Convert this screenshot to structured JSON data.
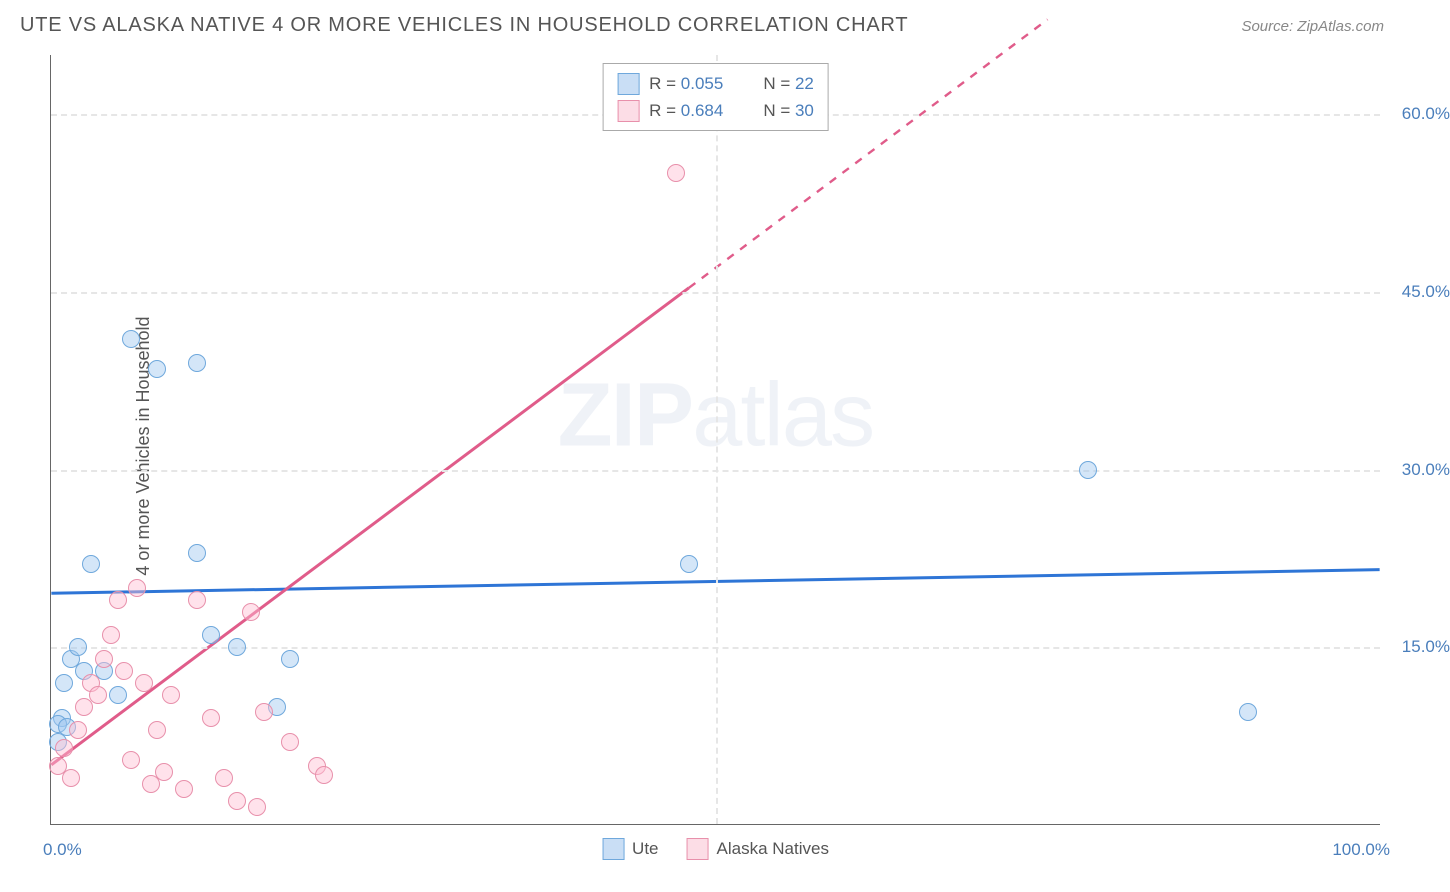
{
  "title": "UTE VS ALASKA NATIVE 4 OR MORE VEHICLES IN HOUSEHOLD CORRELATION CHART",
  "source": "Source: ZipAtlas.com",
  "watermark_a": "ZIP",
  "watermark_b": "atlas",
  "chart": {
    "type": "scatter",
    "ylabel": "4 or more Vehicles in Household",
    "xlim": [
      0,
      100
    ],
    "ylim": [
      0,
      65
    ],
    "xticks": [
      {
        "v": 0,
        "label": "0.0%"
      },
      {
        "v": 50,
        "label": ""
      },
      {
        "v": 100,
        "label": "100.0%"
      }
    ],
    "yticks": [
      {
        "v": 15,
        "label": "15.0%"
      },
      {
        "v": 30,
        "label": "30.0%"
      },
      {
        "v": 45,
        "label": "45.0%"
      },
      {
        "v": 60,
        "label": "60.0%"
      }
    ],
    "grid_color": "#e6e6e6",
    "background_color": "#ffffff",
    "axis_color": "#666666",
    "tick_label_color": "#4a7ebb",
    "marker_radius": 9,
    "marker_stroke_width": 1.2,
    "series": [
      {
        "name": "Ute",
        "fill": "rgba(160, 200, 240, 0.45)",
        "stroke": "#6fa8dc",
        "swatch_fill": "#c9def5",
        "swatch_border": "#6fa8dc",
        "R": "0.055",
        "N": "22",
        "trend": {
          "x1": 0,
          "y1": 19.5,
          "x2": 100,
          "y2": 21.5,
          "color": "#2e75d6",
          "width": 3,
          "solid_until_x": 100
        },
        "points": [
          [
            0.5,
            7
          ],
          [
            0.8,
            9
          ],
          [
            1,
            12
          ],
          [
            1.5,
            14
          ],
          [
            2,
            15
          ],
          [
            2.5,
            13
          ],
          [
            3,
            22
          ],
          [
            0.5,
            8.5
          ],
          [
            4,
            13
          ],
          [
            5,
            11
          ],
          [
            6,
            41
          ],
          [
            8,
            38.5
          ],
          [
            11,
            39
          ],
          [
            11,
            23
          ],
          [
            12,
            16
          ],
          [
            14,
            15
          ],
          [
            17,
            10
          ],
          [
            18,
            14
          ],
          [
            48,
            22
          ],
          [
            78,
            30
          ],
          [
            90,
            9.5
          ],
          [
            1.2,
            8.3
          ]
        ]
      },
      {
        "name": "Alaska Natives",
        "fill": "rgba(255, 190, 210, 0.45)",
        "stroke": "#e890ab",
        "swatch_fill": "#fcdde6",
        "swatch_border": "#e890ab",
        "R": "0.684",
        "N": "30",
        "trend": {
          "x1": 0,
          "y1": 5,
          "x2": 75,
          "y2": 68,
          "color": "#e05c8a",
          "width": 3,
          "solid_until_x": 48
        },
        "points": [
          [
            0.5,
            5
          ],
          [
            1,
            6.5
          ],
          [
            1.5,
            4
          ],
          [
            2,
            8
          ],
          [
            2.5,
            10
          ],
          [
            3,
            12
          ],
          [
            3.5,
            11
          ],
          [
            4,
            14
          ],
          [
            4.5,
            16
          ],
          [
            5,
            19
          ],
          [
            5.5,
            13
          ],
          [
            6,
            5.5
          ],
          [
            6.5,
            20
          ],
          [
            7,
            12
          ],
          [
            7.5,
            3.5
          ],
          [
            8,
            8
          ],
          [
            8.5,
            4.5
          ],
          [
            9,
            11
          ],
          [
            10,
            3
          ],
          [
            11,
            19
          ],
          [
            12,
            9
          ],
          [
            13,
            4
          ],
          [
            14,
            2
          ],
          [
            15,
            18
          ],
          [
            15.5,
            1.5
          ],
          [
            16,
            9.5
          ],
          [
            18,
            7
          ],
          [
            20,
            5
          ],
          [
            20.5,
            4.2
          ],
          [
            47,
            55
          ]
        ]
      }
    ],
    "legend_bottom": [
      {
        "label": "Ute",
        "series_index": 0
      },
      {
        "label": "Alaska Natives",
        "series_index": 1
      }
    ]
  }
}
